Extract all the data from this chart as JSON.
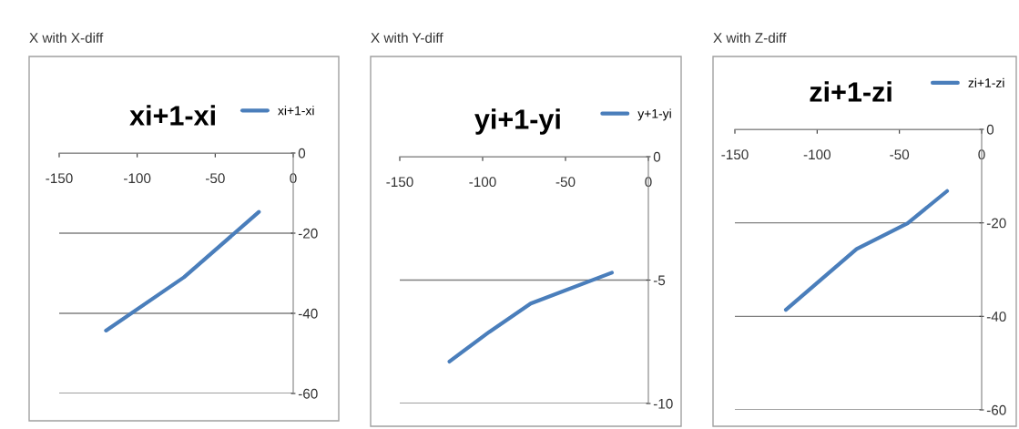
{
  "chart_data": [
    {
      "type": "line",
      "title": "xi+1-xi",
      "annotations": [
        "X with X-diff"
      ],
      "xlim": [
        -150,
        0
      ],
      "ylim": [
        -60,
        0
      ],
      "xticks": [
        -150,
        -100,
        -50,
        0
      ],
      "yticks": [
        0,
        -20,
        -40,
        -60
      ],
      "grid": "y",
      "legend": "top right",
      "line_style": "solid",
      "series": [
        {
          "name": "xi+1-xi",
          "color": "#4a7ebb",
          "x": [
            -120,
            -70,
            -22
          ],
          "values": [
            -44.3,
            -31,
            -14.7
          ]
        }
      ]
    },
    {
      "type": "line",
      "title": "yi+1-yi",
      "annotations": [
        "X with Y-diff"
      ],
      "xlim": [
        -150,
        0
      ],
      "ylim": [
        -10,
        0
      ],
      "xticks": [
        -150,
        -100,
        -50,
        0
      ],
      "yticks": [
        0,
        -5,
        -10
      ],
      "grid": "y",
      "legend": "top right",
      "line_style": "solid",
      "series": [
        {
          "name": "y+1-yi",
          "color": "#4a7ebb",
          "x": [
            -120,
            -96,
            -71,
            -22
          ],
          "values": [
            -8.3,
            -7.1,
            -5.95,
            -4.7
          ]
        }
      ]
    },
    {
      "type": "line",
      "title": "zi+1-zi",
      "annotations": [
        "X with Z-diff"
      ],
      "xlim": [
        -150,
        0
      ],
      "ylim": [
        -60,
        0
      ],
      "xticks": [
        -150,
        -100,
        -50,
        0
      ],
      "yticks": [
        0,
        -20,
        -40,
        -60
      ],
      "grid": "y",
      "legend": "top right",
      "line_style": "solid",
      "series": [
        {
          "name": "zi+1-zi",
          "color": "#4a7ebb",
          "x": [
            -119,
            -76,
            -45,
            -21
          ],
          "values": [
            -38.6,
            -25.6,
            -20.1,
            -13.2
          ]
        }
      ]
    }
  ]
}
